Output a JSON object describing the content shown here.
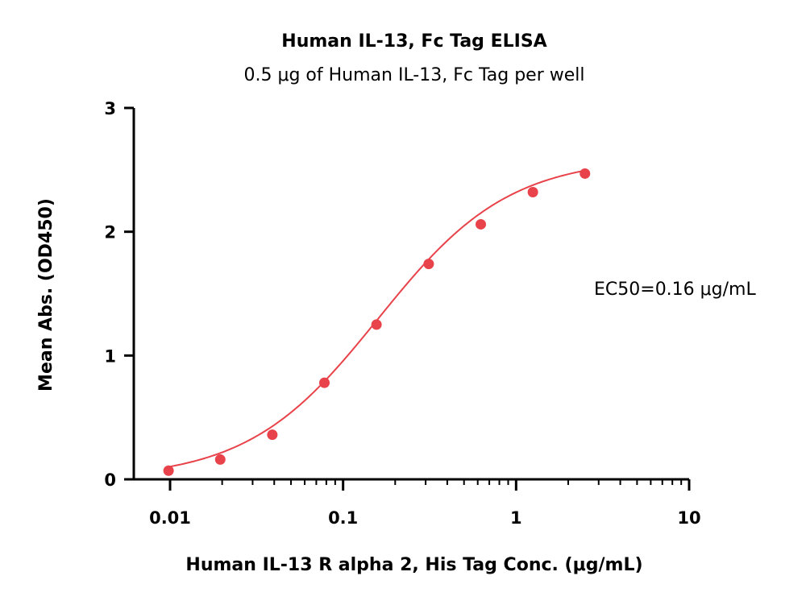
{
  "chart_data": {
    "type": "scatter",
    "title": "Human IL-13, Fc Tag ELISA",
    "subtitle": "0.5 μg of Human IL-13, Fc Tag per well",
    "xlabel": "Human IL-13 R alpha 2, His Tag Conc. (μg/mL)",
    "ylabel": "Mean Abs. (OD450)",
    "x_scale": "log",
    "xlim": [
      0.005,
      10
    ],
    "ylim": [
      0,
      3
    ],
    "x_ticks": [
      {
        "value": 0.01,
        "label": "0.01"
      },
      {
        "value": 0.1,
        "label": "0.1"
      },
      {
        "value": 1,
        "label": "1"
      },
      {
        "value": 10,
        "label": "10"
      }
    ],
    "y_ticks": [
      {
        "value": 0,
        "label": "0"
      },
      {
        "value": 1,
        "label": "1"
      },
      {
        "value": 2,
        "label": "2"
      },
      {
        "value": 3,
        "label": "3"
      }
    ],
    "grid": false,
    "legend": "none",
    "series": [
      {
        "color": "#e8434a",
        "x": [
          0.0098,
          0.0195,
          0.039,
          0.078,
          0.156,
          0.3125,
          0.625,
          1.25,
          2.5
        ],
        "y": [
          0.07,
          0.16,
          0.36,
          0.78,
          1.25,
          1.74,
          2.06,
          2.32,
          2.47
        ]
      }
    ],
    "fit_curve": {
      "model": "4PL",
      "bottom": 0.0,
      "top": 2.6,
      "ec50": 0.16,
      "hill": 1.15,
      "x_range": [
        0.0098,
        2.5
      ],
      "color": "#e8434a"
    },
    "annotation": "EC50=0.16 μg/mL"
  }
}
